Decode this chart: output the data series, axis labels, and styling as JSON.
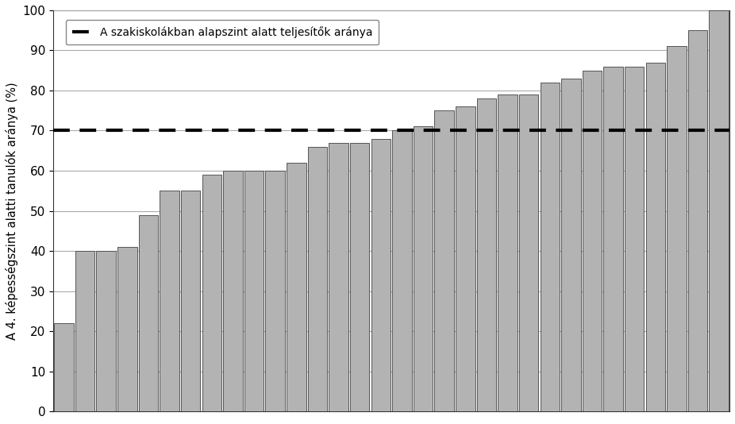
{
  "values": [
    22,
    40,
    40,
    41,
    49,
    55,
    55,
    59,
    60,
    60,
    60,
    62,
    66,
    67,
    67,
    68,
    70,
    71,
    75,
    76,
    78,
    79,
    79,
    82,
    83,
    85,
    86,
    86,
    87,
    91,
    95,
    100
  ],
  "bar_color": "#b3b3b3",
  "bar_edgecolor": "#555555",
  "dashed_line_y": 70,
  "dashed_line_color": "#000000",
  "ylabel": "A 4. képességszint alatti tanulók aránya (%)",
  "legend_label": "A szakiskolákban alapszint alatt teljesítők aránya",
  "ylim": [
    0,
    100
  ],
  "yticks": [
    0,
    10,
    20,
    30,
    40,
    50,
    60,
    70,
    80,
    90,
    100
  ],
  "background_color": "#ffffff",
  "grid_color": "#aaaaaa",
  "bar_width": 0.92,
  "dashed_linewidth": 3.0,
  "legend_fontsize": 10,
  "ylabel_fontsize": 10.5,
  "tick_fontsize": 11
}
